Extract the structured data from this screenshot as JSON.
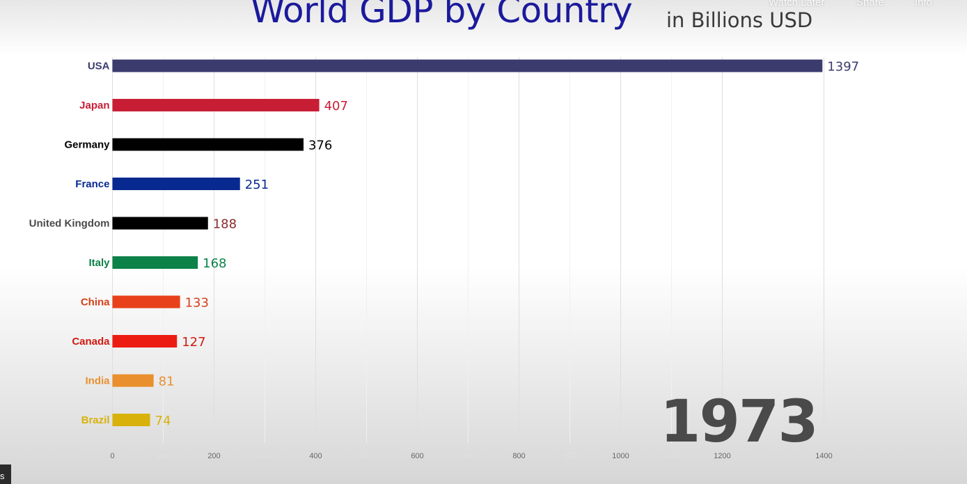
{
  "player": {
    "controls": [
      "Watch Later",
      "Share",
      "Info"
    ],
    "corner_text": "s"
  },
  "chart_data": {
    "type": "bar",
    "orientation": "horizontal",
    "title": "World GDP by Country",
    "subtitle": "in Billions USD",
    "year": "1973",
    "xlim": [
      0,
      1400
    ],
    "xticks": [
      0,
      100,
      200,
      300,
      400,
      500,
      600,
      700,
      800,
      900,
      1000,
      1100,
      1200,
      1400
    ],
    "faint_ticks": [
      100,
      300,
      500,
      700,
      900,
      1100
    ],
    "bars": [
      {
        "label": "USA",
        "value": 1397,
        "color": "#3b3b6e",
        "label_color": "#3b3b6e",
        "value_color": "#3b3b6e"
      },
      {
        "label": "Japan",
        "value": 407,
        "color": "#c81e35",
        "label_color": "#c81e35",
        "value_color": "#c81e35"
      },
      {
        "label": "Germany",
        "value": 376,
        "color": "#000000",
        "label_color": "#000000",
        "value_color": "#000000"
      },
      {
        "label": "France",
        "value": 251,
        "color": "#082a90",
        "label_color": "#082a90",
        "value_color": "#082a90"
      },
      {
        "label": "United Kingdom",
        "value": 188,
        "color": "#000000",
        "label_color": "#4a4a4a",
        "value_color": "#8a2a2a"
      },
      {
        "label": "Italy",
        "value": 168,
        "color": "#0c8148",
        "label_color": "#0c8148",
        "value_color": "#0c8148"
      },
      {
        "label": "China",
        "value": 133,
        "color": "#e8401a",
        "label_color": "#d6401a",
        "value_color": "#d6401a"
      },
      {
        "label": "Canada",
        "value": 127,
        "color": "#ec1c12",
        "label_color": "#d21a12",
        "value_color": "#d21a12"
      },
      {
        "label": "India",
        "value": 81,
        "color": "#e98f2e",
        "label_color": "#e98f2e",
        "value_color": "#e98f2e"
      },
      {
        "label": "Brazil",
        "value": 74,
        "color": "#d8b20a",
        "label_color": "#d8b20a",
        "value_color": "#d8b20a"
      }
    ]
  }
}
